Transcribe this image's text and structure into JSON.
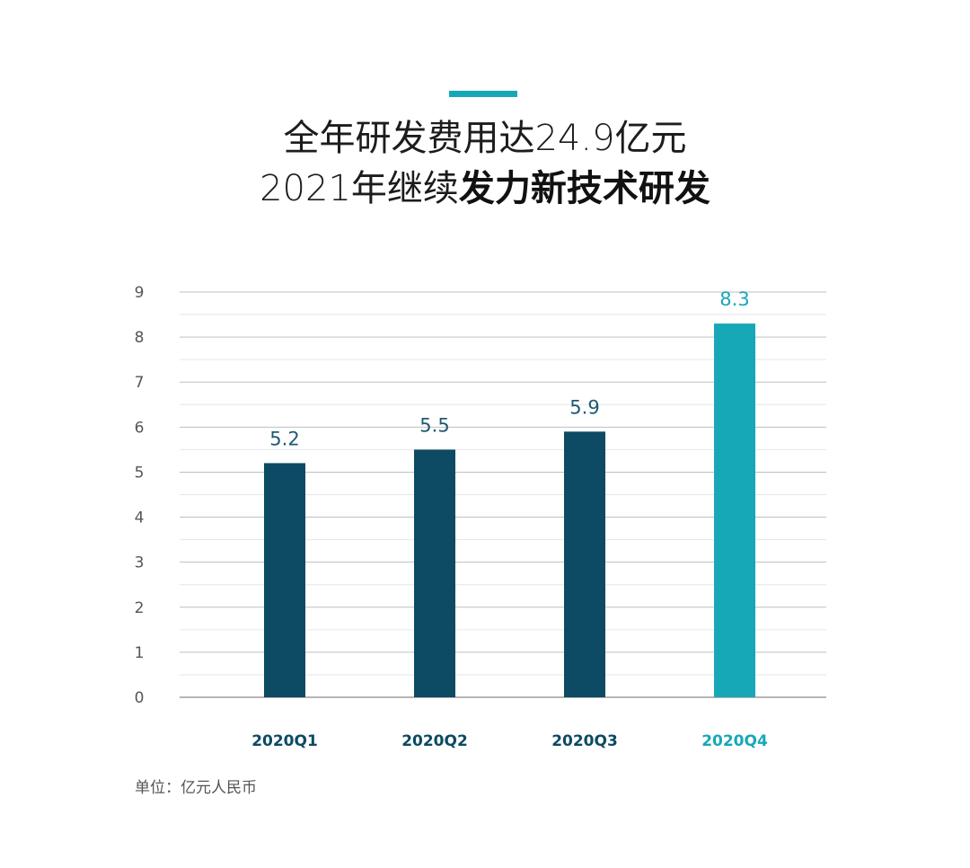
{
  "title": {
    "line1": "全年研发费用达24.9亿元",
    "line2_regular": "2021年继续",
    "line2_bold": "发力新技术研发"
  },
  "unit_note": "单位：亿元人民币",
  "colors": {
    "accent": "#17a8b8",
    "bar_dark": "#0d4a63",
    "bar_highlight": "#17a8b8",
    "grid_major": "#bfbfbf",
    "grid_minor": "#e6e6e6",
    "axis_text": "#555555"
  },
  "chart_data": {
    "type": "bar",
    "categories": [
      "2020Q1",
      "2020Q2",
      "2020Q3",
      "2020Q4"
    ],
    "values": [
      5.2,
      5.5,
      5.9,
      8.3
    ],
    "value_labels": [
      "5.2",
      "5.5",
      "5.9",
      "8.3"
    ],
    "highlight_index": 3,
    "ylim": [
      0,
      9
    ],
    "yticks": [
      0,
      1,
      2,
      3,
      4,
      5,
      6,
      7,
      8,
      9
    ],
    "grid": true,
    "minor_grid": true,
    "xlabel": "",
    "ylabel": ""
  }
}
